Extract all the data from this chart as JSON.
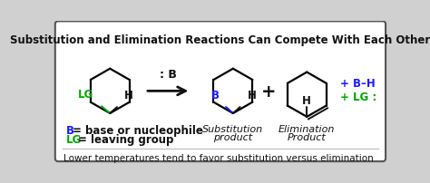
{
  "title": "Substitution and Elimination Reactions Can Compete With Each Other",
  "footer": "Lower temperatures tend to favor substitution versus elimination",
  "bg_outer": "#d0d0d0",
  "bg_inner": "#ffffff",
  "border_color": "#555555",
  "title_fontsize": 8.5,
  "footer_fontsize": 7.5,
  "blue": "#1a1aff",
  "green": "#00aa00",
  "black": "#111111",
  "reagent": ": B",
  "plus_bh": "+ B–H",
  "plus_lg": "+ LG :",
  "sub_product": "Substitution\nproduct",
  "elim_product": "Elimination\nProduct"
}
